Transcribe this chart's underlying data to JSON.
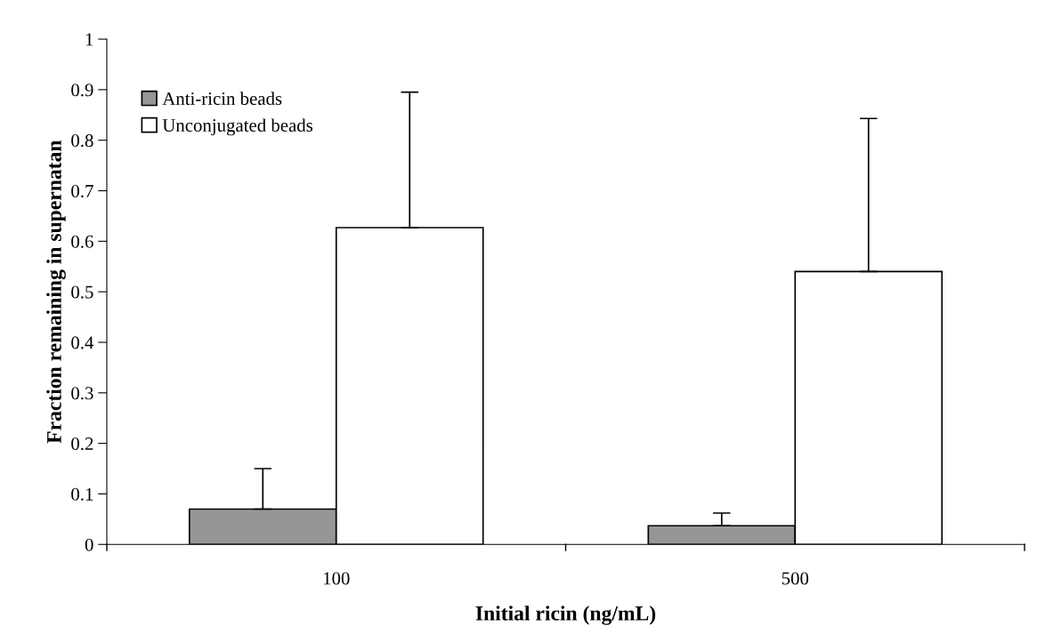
{
  "chart_data": {
    "type": "bar",
    "xlabel": "Initial ricin (ng/mL)",
    "ylabel": "Fraction remaining in supernatan",
    "categories": [
      "100",
      "500"
    ],
    "series": [
      {
        "name": "Anti-ricin beads",
        "color": "#969696",
        "values": [
          0.07,
          0.037
        ],
        "errors": [
          [
            0.07,
            0.15
          ],
          [
            0.037,
            0.062
          ]
        ]
      },
      {
        "name": "Unconjugated beads",
        "color": "#ffffff",
        "values": [
          0.627,
          0.54
        ],
        "errors": [
          [
            0.627,
            0.895
          ],
          [
            0.54,
            0.843
          ]
        ]
      }
    ],
    "ylim": [
      0,
      1
    ],
    "yticks": [
      0,
      0.1,
      0.2,
      0.3,
      0.4,
      0.5,
      0.6,
      0.7,
      0.8,
      0.9,
      1
    ],
    "grid": false,
    "legend": "top left"
  }
}
